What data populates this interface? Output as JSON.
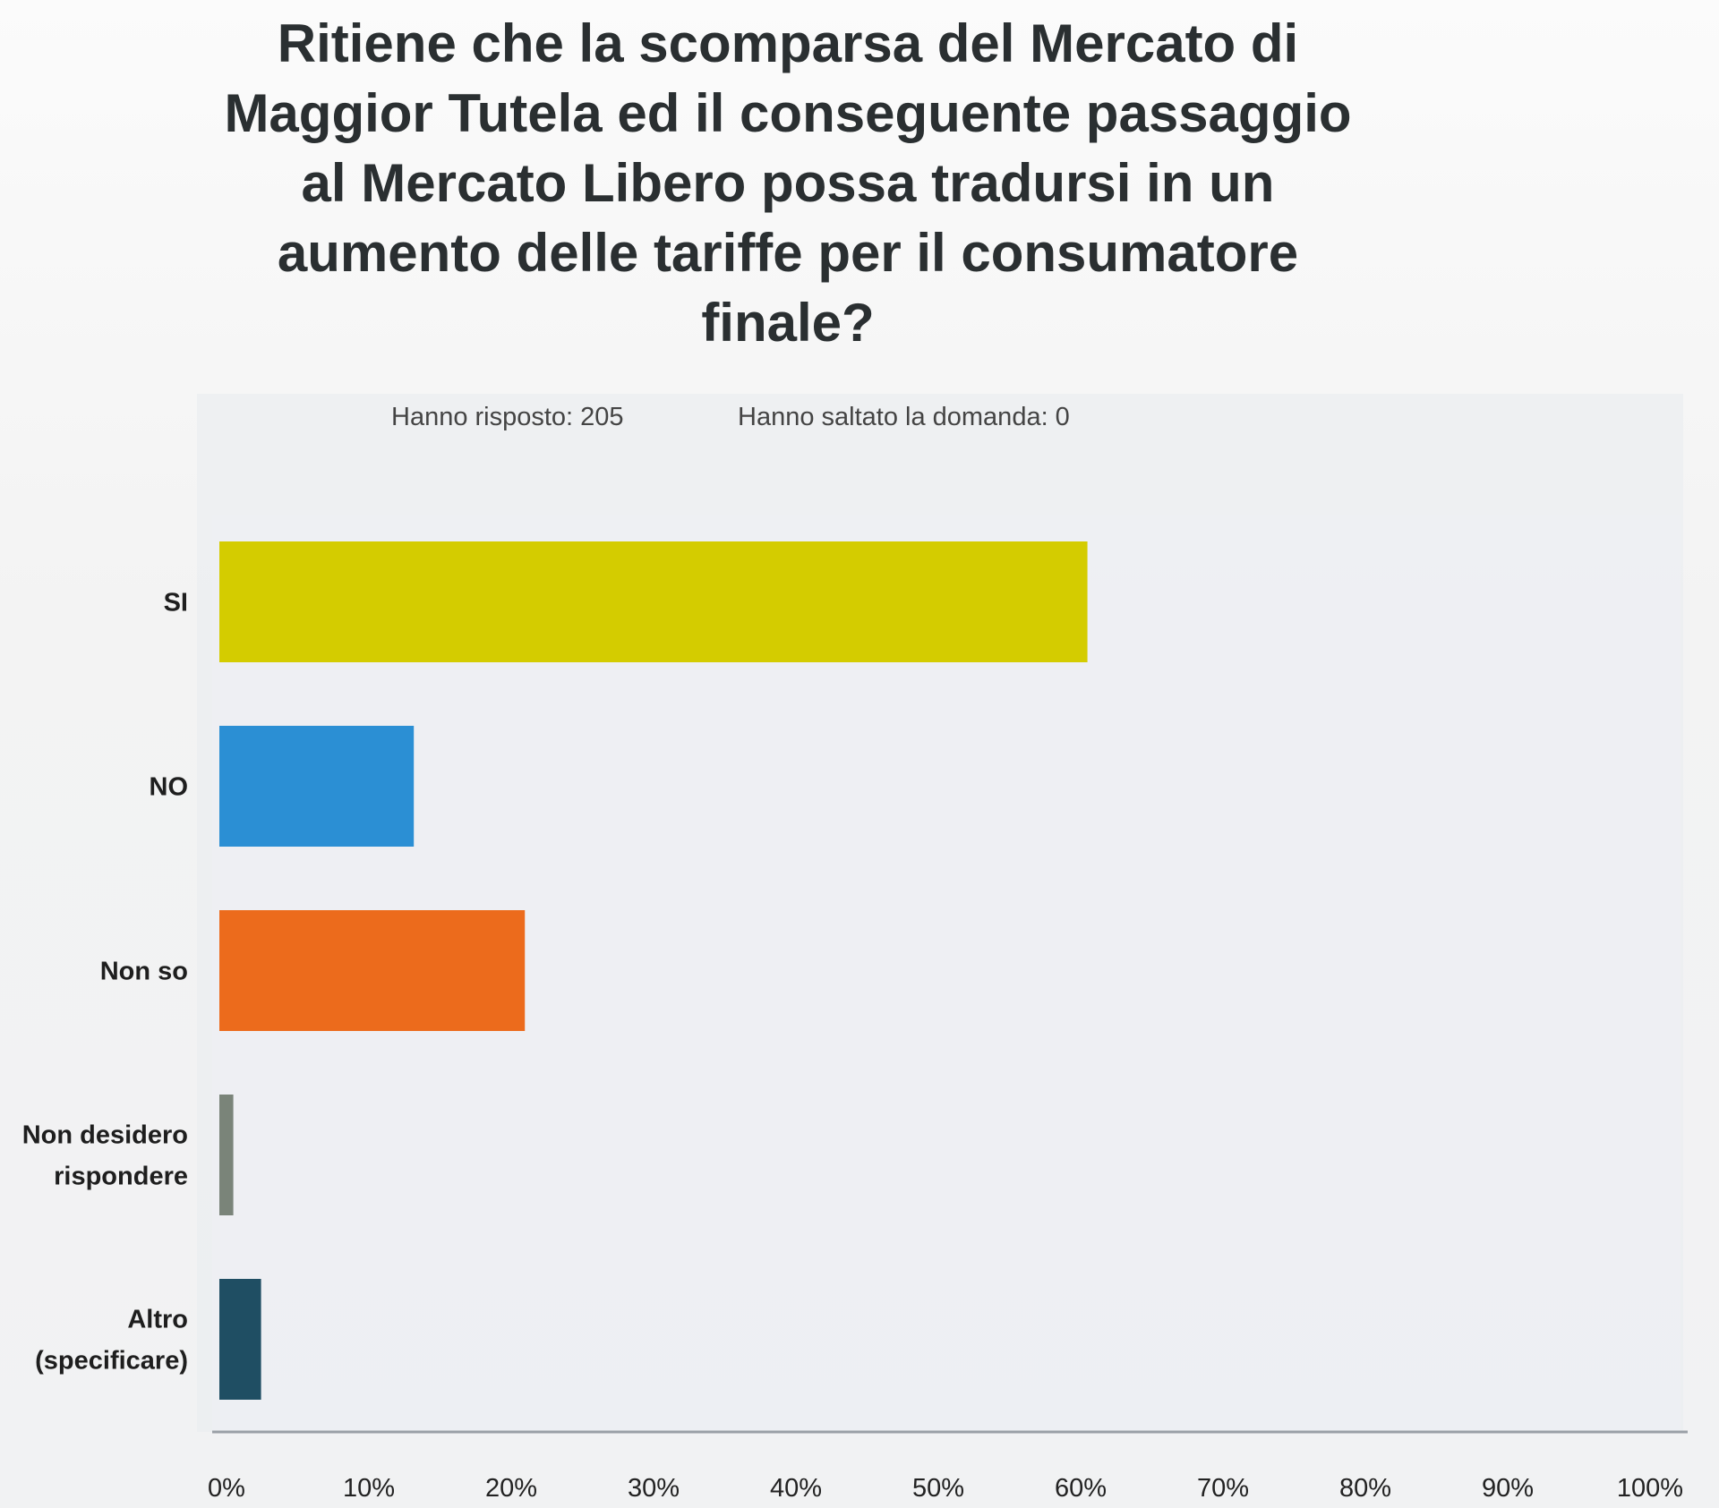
{
  "chart_data": {
    "type": "bar",
    "orientation": "horizontal",
    "title": "Ritiene che la scomparsa del Mercato di Maggior Tutela ed il conseguente passaggio al Mercato Libero possa tradursi in un aumento delle tariffe per il consumatore finale?",
    "title_lines": [
      "Ritiene che la scomparsa del Mercato di",
      "Maggior Tutela ed il conseguente passaggio",
      "al Mercato Libero possa tradursi in un",
      "aumento delle tariffe per il consumatore",
      "finale?"
    ],
    "answered_label": "Hanno risposto: 205",
    "skipped_label": "Hanno saltato la domanda: 0",
    "categories": [
      "SI",
      "NO",
      "Non so",
      "Non desidero rispondere",
      "Altro (specificare)"
    ],
    "category_lines": [
      [
        "SI"
      ],
      [
        "NO"
      ],
      [
        "Non so"
      ],
      [
        "Non desidero",
        "rispondere"
      ],
      [
        "Altro",
        "(specificare)"
      ]
    ],
    "values": [
      60.98,
      13.66,
      21.46,
      0.98,
      2.93
    ],
    "colors": [
      "#d4cc00",
      "#2b8fd4",
      "#ec6b1c",
      "#7a8479",
      "#1f4e63"
    ],
    "xlim": [
      0,
      100
    ],
    "xticks": [
      0,
      10,
      20,
      30,
      40,
      50,
      60,
      70,
      80,
      90,
      100
    ],
    "xtick_labels": [
      "0%",
      "10%",
      "20%",
      "30%",
      "40%",
      "50%",
      "60%",
      "70%",
      "80%",
      "90%",
      "100%"
    ],
    "grid": false,
    "legend": "none"
  }
}
